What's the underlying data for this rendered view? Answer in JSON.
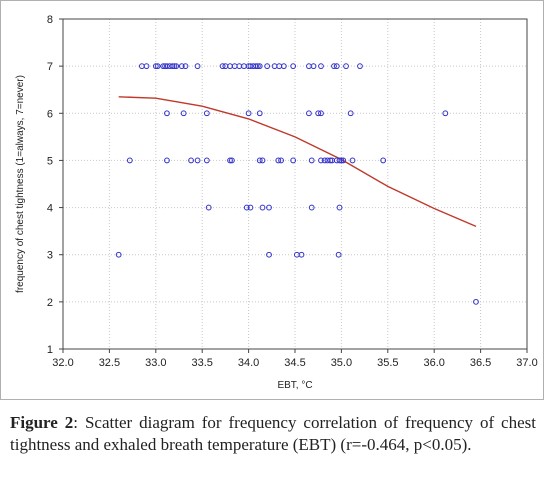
{
  "caption": {
    "label": "Figure 2",
    "text": ": Scatter diagram for frequency correlation of frequency of chest tightness and exhaled breath temperature (EBT) (r=-0.464, p<0.05)."
  },
  "chart_data": {
    "type": "scatter",
    "xlabel": "EBT, °C",
    "ylabel": "frequency of chest tightness (1=always, 7=never)",
    "xlim": [
      32.0,
      37.0
    ],
    "ylim": [
      1,
      8
    ],
    "xticks": [
      "32.0",
      "32.5",
      "33.0",
      "33.5",
      "34.0",
      "34.5",
      "35.0",
      "35.5",
      "36.0",
      "36.5",
      "37.0"
    ],
    "yticks": [
      "1",
      "2",
      "3",
      "4",
      "5",
      "6",
      "7",
      "8"
    ],
    "grid": true,
    "colors": {
      "points": "#3333cc",
      "fit_line": "#c0392b"
    },
    "series": [
      {
        "name": "",
        "points": [
          [
            32.85,
            7
          ],
          [
            32.9,
            7
          ],
          [
            33.0,
            7
          ],
          [
            33.02,
            7
          ],
          [
            33.08,
            7
          ],
          [
            33.1,
            7
          ],
          [
            33.12,
            7
          ],
          [
            33.15,
            7
          ],
          [
            33.18,
            7
          ],
          [
            33.2,
            7
          ],
          [
            33.22,
            7
          ],
          [
            33.28,
            7
          ],
          [
            33.32,
            7
          ],
          [
            33.45,
            7
          ],
          [
            33.72,
            7
          ],
          [
            33.75,
            7
          ],
          [
            33.8,
            7
          ],
          [
            33.85,
            7
          ],
          [
            33.9,
            7
          ],
          [
            33.95,
            7
          ],
          [
            34.0,
            7
          ],
          [
            34.02,
            7
          ],
          [
            34.05,
            7
          ],
          [
            34.08,
            7
          ],
          [
            34.1,
            7
          ],
          [
            34.12,
            7
          ],
          [
            34.2,
            7
          ],
          [
            34.28,
            7
          ],
          [
            34.33,
            7
          ],
          [
            34.38,
            7
          ],
          [
            34.48,
            7
          ],
          [
            34.65,
            7
          ],
          [
            34.7,
            7
          ],
          [
            34.78,
            7
          ],
          [
            34.92,
            7
          ],
          [
            34.95,
            7
          ],
          [
            35.05,
            7
          ],
          [
            35.2,
            7
          ],
          [
            33.12,
            6
          ],
          [
            33.3,
            6
          ],
          [
            33.55,
            6
          ],
          [
            34.0,
            6
          ],
          [
            34.12,
            6
          ],
          [
            34.65,
            6
          ],
          [
            34.75,
            6
          ],
          [
            34.78,
            6
          ],
          [
            35.1,
            6
          ],
          [
            36.12,
            6
          ],
          [
            32.72,
            5
          ],
          [
            33.12,
            5
          ],
          [
            33.38,
            5
          ],
          [
            33.45,
            5
          ],
          [
            33.55,
            5
          ],
          [
            33.8,
            5
          ],
          [
            33.82,
            5
          ],
          [
            34.12,
            5
          ],
          [
            34.15,
            5
          ],
          [
            34.32,
            5
          ],
          [
            34.35,
            5
          ],
          [
            34.48,
            5
          ],
          [
            34.68,
            5
          ],
          [
            34.78,
            5
          ],
          [
            34.82,
            5
          ],
          [
            34.85,
            5
          ],
          [
            34.88,
            5
          ],
          [
            34.9,
            5
          ],
          [
            34.95,
            5
          ],
          [
            34.98,
            5
          ],
          [
            35.0,
            5
          ],
          [
            35.02,
            5
          ],
          [
            35.12,
            5
          ],
          [
            35.45,
            5
          ],
          [
            33.57,
            4
          ],
          [
            33.98,
            4
          ],
          [
            34.02,
            4
          ],
          [
            34.15,
            4
          ],
          [
            34.22,
            4
          ],
          [
            34.68,
            4
          ],
          [
            34.98,
            4
          ],
          [
            32.6,
            3
          ],
          [
            34.22,
            3
          ],
          [
            34.52,
            3
          ],
          [
            34.57,
            3
          ],
          [
            34.97,
            3
          ],
          [
            36.45,
            2
          ]
        ]
      }
    ],
    "fit_curve": [
      [
        32.6,
        6.35
      ],
      [
        33.0,
        6.32
      ],
      [
        33.5,
        6.15
      ],
      [
        34.0,
        5.88
      ],
      [
        34.5,
        5.5
      ],
      [
        35.0,
        5.02
      ],
      [
        35.5,
        4.45
      ],
      [
        36.0,
        3.98
      ],
      [
        36.45,
        3.6
      ]
    ]
  }
}
